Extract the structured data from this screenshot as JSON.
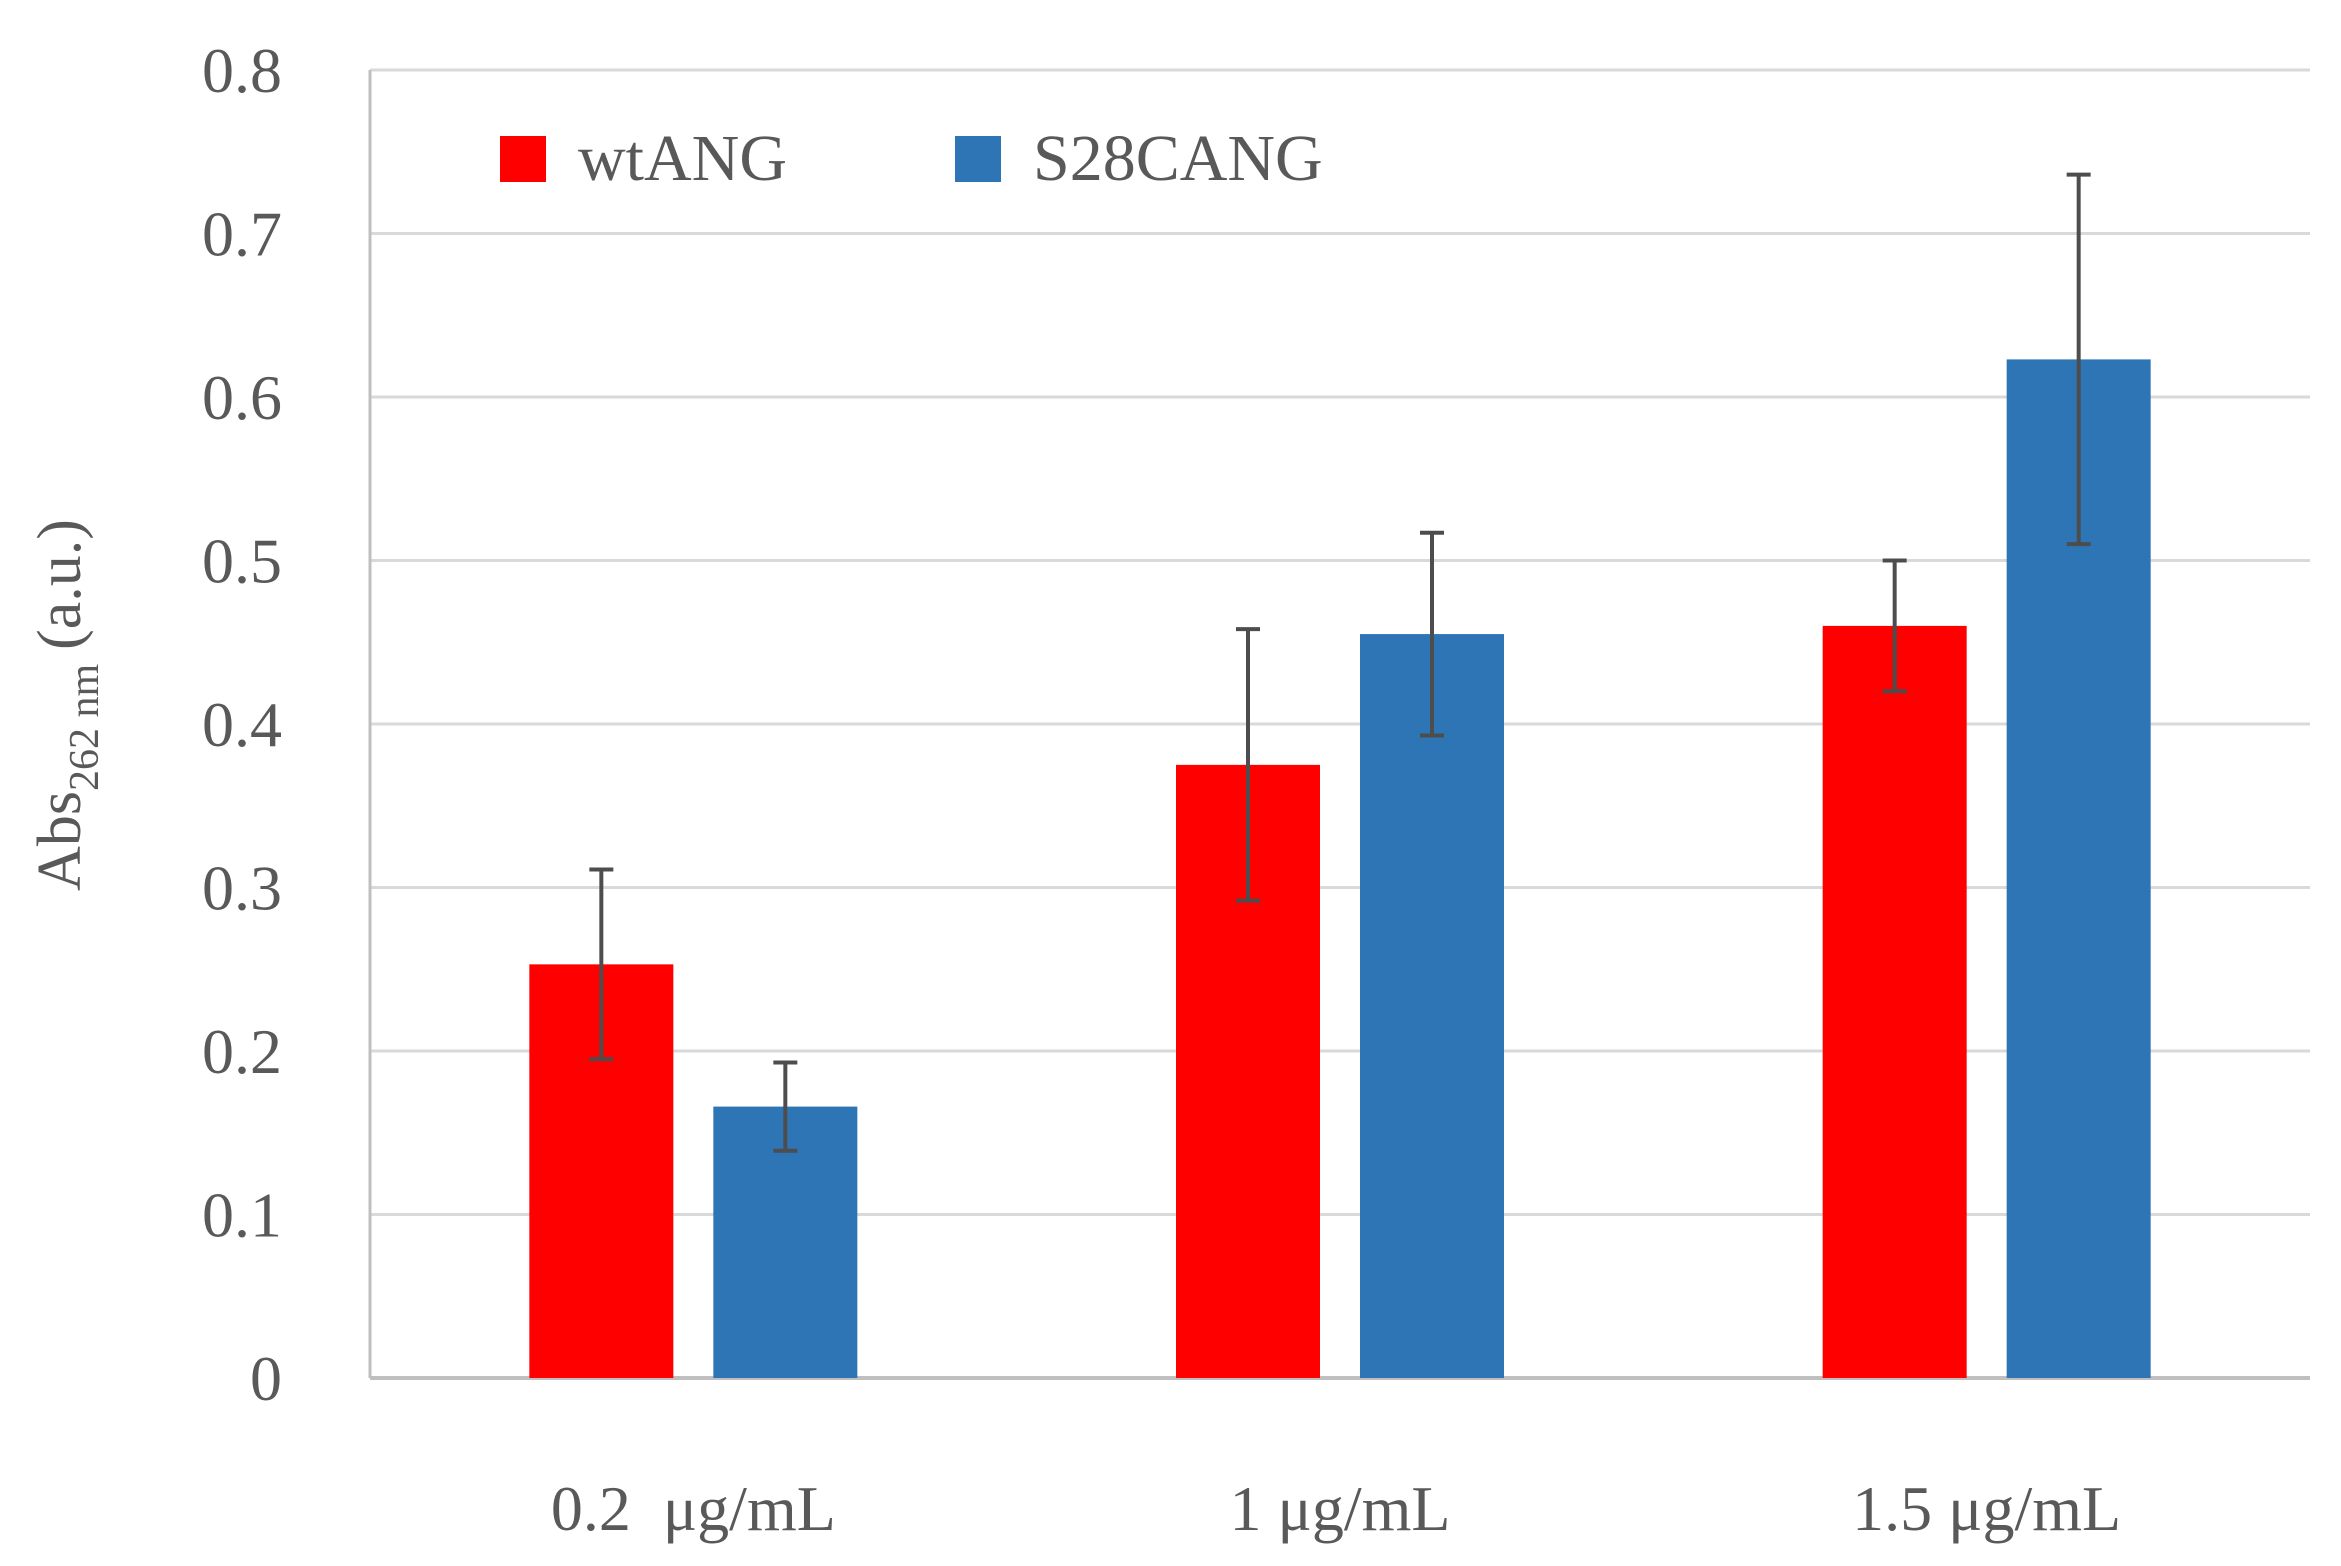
{
  "chart_data": {
    "type": "bar",
    "title": "",
    "xlabel": "",
    "ylabel": {
      "main": "Abs",
      "subscript": "262 nm",
      "unit": "(a.u.)"
    },
    "ylim": [
      0,
      0.8
    ],
    "yticks": [
      "0",
      "0.1",
      "0.2",
      "0.3",
      "0.4",
      "0.5",
      "0.6",
      "0.7",
      "0.8"
    ],
    "grid": true,
    "legend_position": "top-left",
    "categories": [
      "0.2  μg/mL",
      "1 μg/mL",
      "1.5 μg/mL"
    ],
    "series": [
      {
        "name": "wtANG",
        "color": "#ff0000",
        "values": [
          0.253,
          0.375,
          0.46
        ],
        "errors": [
          0.058,
          0.083,
          0.04
        ]
      },
      {
        "name": "S28CANG",
        "color": "#2e75b6",
        "values": [
          0.166,
          0.455,
          0.623
        ],
        "errors": [
          0.027,
          0.062,
          0.113
        ]
      }
    ],
    "colors": {
      "gridline": "#d9d9d9",
      "axis": "#bfbfbf",
      "errorbar": "#4d4d4d",
      "text": "#595959"
    }
  }
}
